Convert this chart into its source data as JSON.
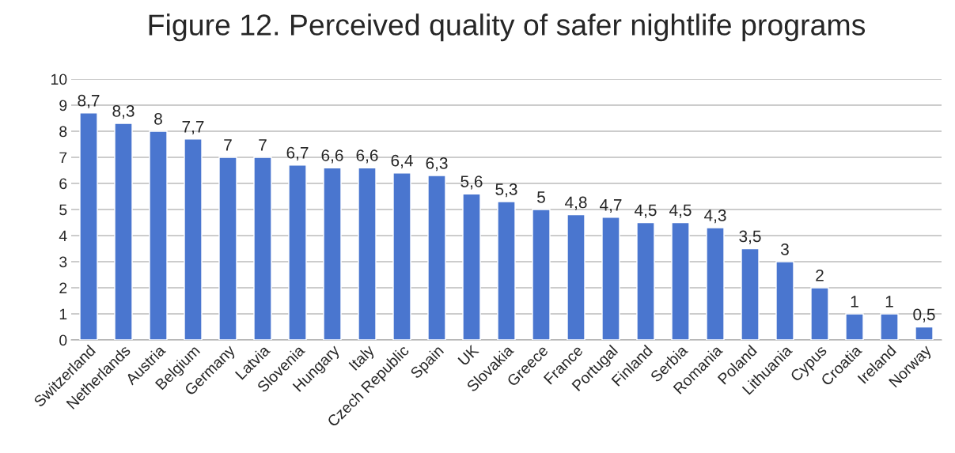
{
  "chart_data": {
    "type": "bar",
    "title": "Figure 12. Perceived quality of safer nightlife programs",
    "categories": [
      "Switzerland",
      "Netherlands",
      "Austria",
      "Belgium",
      "Germany",
      "Latvia",
      "Slovenia",
      "Hungary",
      "Italy",
      "Czech Republic",
      "Spain",
      "UK",
      "Slovakia",
      "Greece",
      "France",
      "Portugal",
      "Finland",
      "Serbia",
      "Romania",
      "Poland",
      "Lithuania",
      "Cypus",
      "Croatia",
      "Ireland",
      "Norway"
    ],
    "values": [
      8.7,
      8.3,
      8,
      7.7,
      7,
      7,
      6.7,
      6.6,
      6.6,
      6.4,
      6.3,
      5.6,
      5.3,
      5,
      4.8,
      4.7,
      4.5,
      4.5,
      4.3,
      3.5,
      3,
      2,
      1,
      1,
      0.5
    ],
    "value_labels": [
      "8,7",
      "8,3",
      "8",
      "7,7",
      "7",
      "7",
      "6,7",
      "6,6",
      "6,6",
      "6,4",
      "6,3",
      "5,6",
      "5,3",
      "5",
      "4,8",
      "4,7",
      "4,5",
      "4,5",
      "4,3",
      "3,5",
      "3",
      "2",
      "1",
      "1",
      "0,5"
    ],
    "color": "#4a76cf",
    "ylim": [
      0,
      10
    ],
    "yticks": [
      0,
      1,
      2,
      3,
      4,
      5,
      6,
      7,
      8,
      9,
      10
    ],
    "grid": "y"
  }
}
